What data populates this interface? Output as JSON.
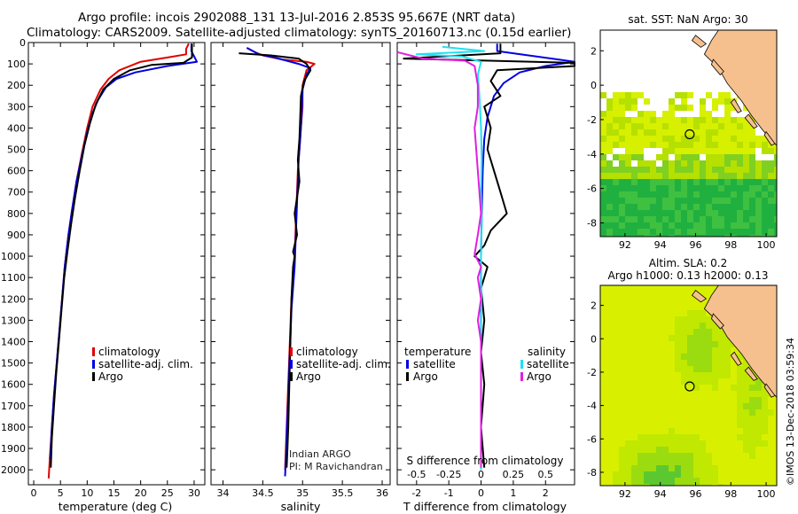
{
  "page": {
    "title_line1": "Argo profile: incois 2902088_131 13-Jul-2016 2.853S 95.667E (NRT data)",
    "title_line2": "Climatology: CARS2009. Satellite-adjusted climatology: synTS_20160713.nc (0.15d earlier)",
    "stamp": "©IMOS 13-Dec-2018 03:59:34"
  },
  "colors": {
    "climatology": "#e00000",
    "satellite": "#0000e0",
    "argo": "#000000",
    "satellite_s": "#20e0f0",
    "argo_s": "#e020e0"
  },
  "chart_data": [
    {
      "type": "line",
      "id": "temperature",
      "xlabel": "temperature (deg C)",
      "ylabel": "",
      "xlim": [
        -1,
        32
      ],
      "ylim": [
        2070,
        0
      ],
      "xticks": [
        0,
        5,
        10,
        15,
        20,
        25,
        30
      ],
      "yticks": [
        0,
        100,
        200,
        300,
        400,
        500,
        600,
        700,
        800,
        900,
        1000,
        1100,
        1200,
        1300,
        1400,
        1500,
        1600,
        1700,
        1800,
        1900,
        2000
      ],
      "legend": [
        "climatology",
        "satellite-adj. clim.",
        "Argo"
      ],
      "series": [
        {
          "name": "climatology",
          "color": "#e00000",
          "points": [
            [
              29,
              5
            ],
            [
              28.5,
              30
            ],
            [
              28.5,
              55
            ],
            [
              25,
              70
            ],
            [
              20,
              90
            ],
            [
              16,
              130
            ],
            [
              14,
              170
            ],
            [
              12.5,
              220
            ],
            [
              11,
              300
            ],
            [
              10,
              400
            ],
            [
              9,
              520
            ],
            [
              8,
              650
            ],
            [
              7.2,
              780
            ],
            [
              6.5,
              900
            ],
            [
              5.8,
              1050
            ],
            [
              5.3,
              1200
            ],
            [
              4.8,
              1350
            ],
            [
              4.3,
              1500
            ],
            [
              3.8,
              1650
            ],
            [
              3.4,
              1800
            ],
            [
              3,
              1950
            ],
            [
              2.8,
              2040
            ]
          ]
        },
        {
          "name": "satellite-adj. clim.",
          "color": "#0000e0",
          "points": [
            [
              29.5,
              5
            ],
            [
              29.5,
              40
            ],
            [
              30.5,
              90
            ],
            [
              25,
              110
            ],
            [
              19,
              140
            ],
            [
              15.5,
              170
            ],
            [
              13.5,
              210
            ],
            [
              12,
              270
            ],
            [
              11,
              330
            ],
            [
              10,
              420
            ],
            [
              9,
              530
            ],
            [
              8,
              650
            ],
            [
              7.2,
              780
            ],
            [
              6.5,
              900
            ],
            [
              5.8,
              1050
            ],
            [
              5.3,
              1200
            ],
            [
              4.8,
              1350
            ],
            [
              4.3,
              1500
            ],
            [
              3.8,
              1650
            ],
            [
              3.4,
              1800
            ],
            [
              3.1,
              1950
            ]
          ]
        },
        {
          "name": "Argo",
          "color": "#000000",
          "points": [
            [
              29.6,
              5
            ],
            [
              29.6,
              70
            ],
            [
              28,
              95
            ],
            [
              22,
              105
            ],
            [
              18,
              130
            ],
            [
              15,
              170
            ],
            [
              13,
              220
            ],
            [
              11.6,
              290
            ],
            [
              10.5,
              380
            ],
            [
              9.5,
              480
            ],
            [
              8.6,
              600
            ],
            [
              7.7,
              730
            ],
            [
              7,
              850
            ],
            [
              6.3,
              980
            ],
            [
              5.7,
              1100
            ],
            [
              5.2,
              1250
            ],
            [
              4.7,
              1400
            ],
            [
              4.2,
              1550
            ],
            [
              3.8,
              1700
            ],
            [
              3.4,
              1850
            ],
            [
              3.2,
              1990
            ]
          ]
        }
      ]
    },
    {
      "type": "line",
      "id": "salinity",
      "xlabel": "salinity",
      "xlim": [
        33.85,
        36.1
      ],
      "ylim": [
        2070,
        0
      ],
      "xticks": [
        34,
        34.5,
        35,
        35.5,
        36
      ],
      "xtick_labels": [
        "34",
        "34.5",
        "35",
        "35.5",
        "36"
      ],
      "legend": [
        "climatology",
        "satellite-adj. clim.",
        "Argo"
      ],
      "annotation_line1": "Indian ARGO",
      "annotation_line2": "PI: M Ravichandran",
      "series": [
        {
          "name": "climatology",
          "color": "#e00000",
          "points": [
            [
              34.3,
              25
            ],
            [
              34.4,
              45
            ],
            [
              34.5,
              60
            ],
            [
              34.75,
              80
            ],
            [
              35.05,
              90
            ],
            [
              35.15,
              100
            ],
            [
              35.05,
              130
            ],
            [
              35,
              200
            ],
            [
              35,
              300
            ],
            [
              34.98,
              400
            ],
            [
              34.96,
              500
            ],
            [
              34.94,
              600
            ],
            [
              34.93,
              700
            ],
            [
              34.92,
              800
            ],
            [
              34.91,
              900
            ],
            [
              34.9,
              1000
            ],
            [
              34.88,
              1100
            ],
            [
              34.86,
              1200
            ],
            [
              34.85,
              1300
            ],
            [
              34.84,
              1400
            ],
            [
              34.83,
              1500
            ],
            [
              34.82,
              1600
            ],
            [
              34.81,
              1700
            ],
            [
              34.8,
              1800
            ],
            [
              34.79,
              1900
            ],
            [
              34.78,
              2000
            ]
          ]
        },
        {
          "name": "satellite-adj. clim.",
          "color": "#0000e0",
          "points": [
            [
              34.3,
              25
            ],
            [
              34.45,
              55
            ],
            [
              34.65,
              70
            ],
            [
              34.95,
              100
            ],
            [
              35.1,
              120
            ],
            [
              35.05,
              150
            ],
            [
              35,
              220
            ],
            [
              34.99,
              330
            ],
            [
              34.97,
              450
            ],
            [
              34.95,
              550
            ],
            [
              34.94,
              650
            ],
            [
              34.93,
              750
            ],
            [
              34.92,
              850
            ],
            [
              34.91,
              950
            ],
            [
              34.9,
              1050
            ],
            [
              34.88,
              1150
            ],
            [
              34.86,
              1250
            ],
            [
              34.85,
              1350
            ],
            [
              34.84,
              1450
            ],
            [
              34.83,
              1550
            ],
            [
              34.82,
              1650
            ],
            [
              34.81,
              1750
            ],
            [
              34.8,
              1850
            ],
            [
              34.79,
              1950
            ],
            [
              34.78,
              2030
            ]
          ]
        },
        {
          "name": "Argo",
          "color": "#000000",
          "points": [
            [
              34.2,
              50
            ],
            [
              34.6,
              60
            ],
            [
              34.95,
              75
            ],
            [
              35.05,
              100
            ],
            [
              35.1,
              130
            ],
            [
              35.02,
              180
            ],
            [
              34.98,
              250
            ],
            [
              34.97,
              350
            ],
            [
              34.96,
              450
            ],
            [
              34.94,
              550
            ],
            [
              34.96,
              650
            ],
            [
              34.92,
              750
            ],
            [
              34.9,
              800
            ],
            [
              34.93,
              900
            ],
            [
              34.88,
              980
            ],
            [
              34.9,
              1000
            ],
            [
              34.88,
              1050
            ],
            [
              34.86,
              1200
            ],
            [
              34.85,
              1350
            ],
            [
              34.84,
              1500
            ],
            [
              34.83,
              1650
            ],
            [
              34.82,
              1800
            ],
            [
              34.81,
              1900
            ],
            [
              34.8,
              1990
            ]
          ]
        }
      ]
    },
    {
      "type": "line",
      "id": "difference",
      "xlabel": "T difference from climatology",
      "xlabel_top": "S difference from climatology",
      "xlim": [
        -2.6,
        2.9
      ],
      "ylim": [
        2070,
        0
      ],
      "xticks": [
        -2,
        -1,
        0,
        1,
        2
      ],
      "s_ticks": [
        -0.5,
        -0.25,
        0,
        0.25,
        0.5
      ],
      "s_tick_labels": [
        "-0.5",
        "-0.25",
        "0",
        "0.25",
        "0.5"
      ],
      "legend_t_title": "temperature",
      "legend_s_title": "salinity",
      "legend_t": [
        "satellite",
        "Argo"
      ],
      "legend_s": [
        "satellite",
        "Argo"
      ],
      "series": [
        {
          "name": "T satellite",
          "color": "#0000e0",
          "points": [
            [
              0.5,
              5
            ],
            [
              0.5,
              40
            ],
            [
              2.9,
              90
            ],
            [
              2,
              110
            ],
            [
              1.2,
              140
            ],
            [
              0.7,
              190
            ],
            [
              0.4,
              250
            ],
            [
              0.2,
              350
            ],
            [
              0.1,
              450
            ],
            [
              0.05,
              600
            ],
            [
              0.02,
              800
            ],
            [
              0,
              1000
            ],
            [
              0,
              1200
            ],
            [
              0,
              1400
            ],
            [
              0,
              1600
            ],
            [
              0,
              1800
            ],
            [
              0,
              1990
            ]
          ]
        },
        {
          "name": "T Argo",
          "color": "#000000",
          "points": [
            [
              0.6,
              5
            ],
            [
              0.6,
              50
            ],
            [
              -2.4,
              75
            ],
            [
              2.9,
              95
            ],
            [
              2.9,
              110
            ],
            [
              0.5,
              130
            ],
            [
              0.3,
              180
            ],
            [
              0.6,
              250
            ],
            [
              0.1,
              300
            ],
            [
              0.3,
              400
            ],
            [
              0.2,
              500
            ],
            [
              0.4,
              600
            ],
            [
              0.6,
              700
            ],
            [
              0.8,
              800
            ],
            [
              0.3,
              880
            ],
            [
              0.1,
              950
            ],
            [
              -0.2,
              1000
            ],
            [
              0.2,
              1050
            ],
            [
              0,
              1150
            ],
            [
              0.1,
              1300
            ],
            [
              0,
              1450
            ],
            [
              0.1,
              1600
            ],
            [
              0,
              1800
            ],
            [
              0.1,
              1990
            ]
          ]
        },
        {
          "name": "S satellite",
          "color": "#20e0f0",
          "points": [
            [
              -1.2,
              20
            ],
            [
              0.1,
              40
            ],
            [
              -2,
              55
            ],
            [
              -0.6,
              65
            ],
            [
              0,
              90
            ],
            [
              -0.1,
              150
            ],
            [
              -0.05,
              250
            ],
            [
              0,
              400
            ],
            [
              0.02,
              550
            ],
            [
              0,
              700
            ],
            [
              0.02,
              850
            ],
            [
              0,
              1000
            ],
            [
              0.01,
              1200
            ],
            [
              0,
              1400
            ],
            [
              0,
              1600
            ],
            [
              0,
              1800
            ],
            [
              0,
              2000
            ]
          ]
        },
        {
          "name": "S Argo",
          "color": "#e020e0",
          "points": [
            [
              -2.6,
              45
            ],
            [
              -2.2,
              60
            ],
            [
              -1.8,
              75
            ],
            [
              -0.5,
              85
            ],
            [
              -0.2,
              110
            ],
            [
              -0.1,
              200
            ],
            [
              -0.1,
              300
            ],
            [
              -0.2,
              400
            ],
            [
              -0.15,
              500
            ],
            [
              -0.1,
              600
            ],
            [
              -0.05,
              700
            ],
            [
              0,
              800
            ],
            [
              -0.1,
              900
            ],
            [
              -0.2,
              990
            ],
            [
              0,
              1050
            ],
            [
              -0.1,
              1100
            ],
            [
              0,
              1200
            ],
            [
              -0.1,
              1300
            ],
            [
              0,
              1400
            ],
            [
              0,
              1600
            ],
            [
              0,
              1800
            ],
            [
              0,
              1990
            ]
          ]
        }
      ]
    },
    {
      "type": "heatmap",
      "id": "sst_map",
      "title": "sat. SST: NaN Argo: 30",
      "xlim": [
        90.6,
        100.6
      ],
      "ylim": [
        -8.8,
        3.2
      ],
      "xticks": [
        92,
        94,
        96,
        98,
        100
      ],
      "yticks": [
        2,
        0,
        -2,
        -4,
        -6,
        -8
      ],
      "marker": [
        95.667,
        -2.853
      ]
    },
    {
      "type": "heatmap",
      "id": "sla_map",
      "title": "Altim. SLA: 0.2",
      "subtitle": "Argo h1000: 0.13 h2000: 0.13",
      "xlim": [
        90.6,
        100.6
      ],
      "ylim": [
        -8.8,
        3.2
      ],
      "xticks": [
        92,
        94,
        96,
        98,
        100
      ],
      "yticks": [
        2,
        0,
        -2,
        -4,
        -6,
        -8
      ],
      "marker": [
        95.667,
        -2.853
      ]
    }
  ]
}
